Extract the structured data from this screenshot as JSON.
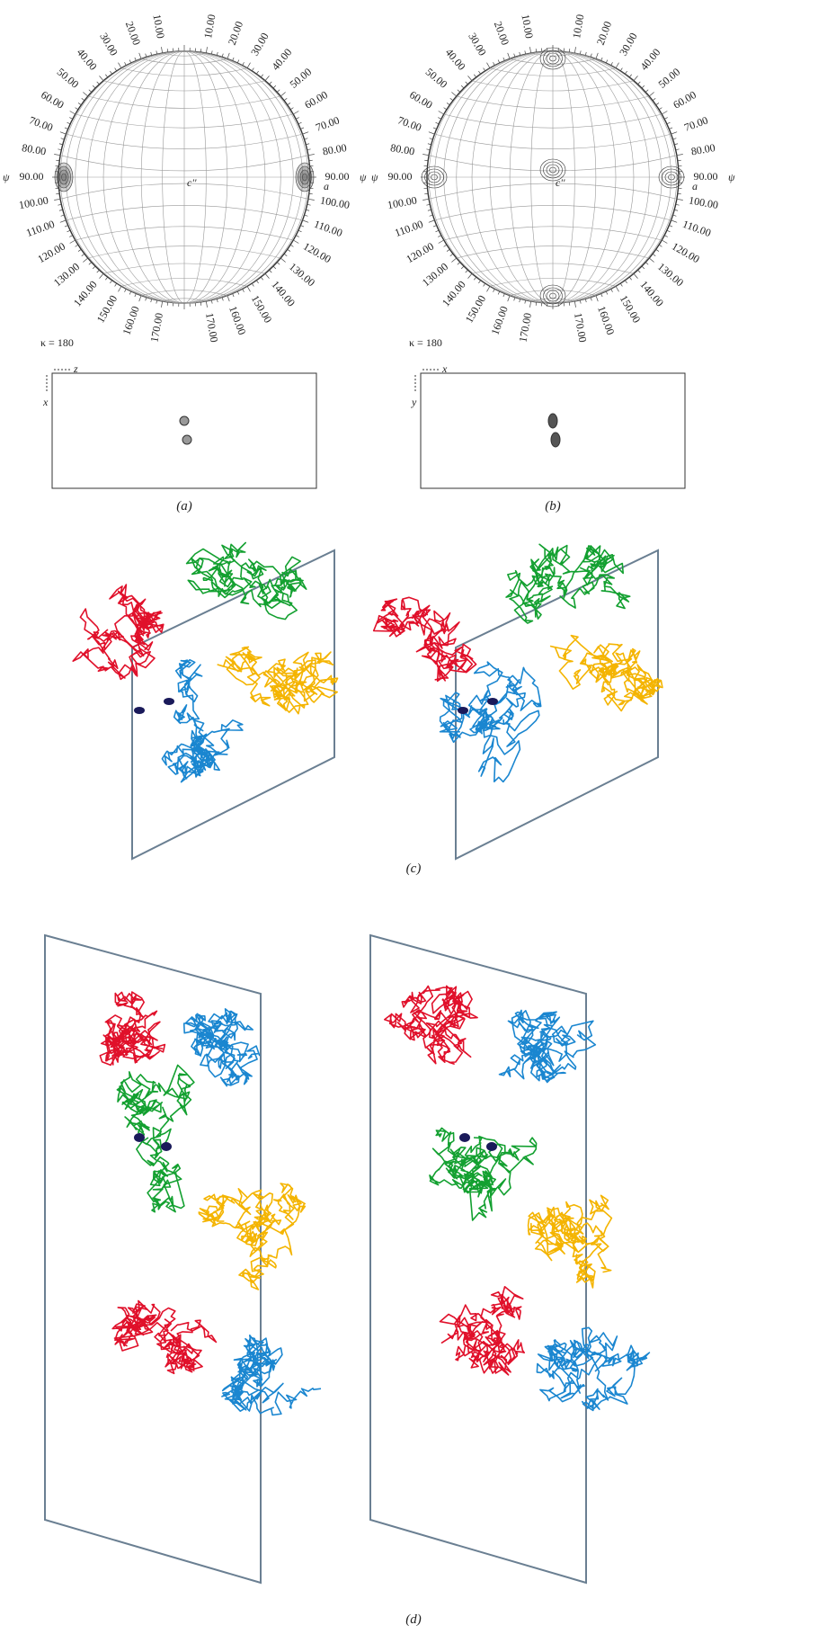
{
  "panels": [
    {
      "psi_labels": [
        "10.00",
        "20.00",
        "30.00",
        "40.00",
        "50.00",
        "60.00",
        "70.00",
        "80.00",
        "90.00",
        "100.00",
        "110.00",
        "120.00",
        "130.00",
        "140.00",
        "150.00",
        "160.00",
        "170.00"
      ],
      "psi_symbol": "ψ",
      "axis_label": "a",
      "center_label": "c''",
      "kappa": "κ = 180",
      "section_axes": [
        "z",
        "x"
      ],
      "caption": "(a)"
    },
    {
      "psi_labels": [
        "10.00",
        "20.00",
        "30.00",
        "40.00",
        "50.00",
        "60.00",
        "70.00",
        "80.00",
        "90.00",
        "100.00",
        "110.00",
        "120.00",
        "130.00",
        "140.00",
        "150.00",
        "160.00",
        "170.00"
      ],
      "psi_symbol": "ψ",
      "axis_label": "a",
      "center_label": "c''",
      "kappa": "κ = 180",
      "section_axes": [
        "x",
        "y"
      ],
      "caption": "(b)"
    }
  ],
  "captions": [
    "(c)",
    "(d)"
  ]
}
